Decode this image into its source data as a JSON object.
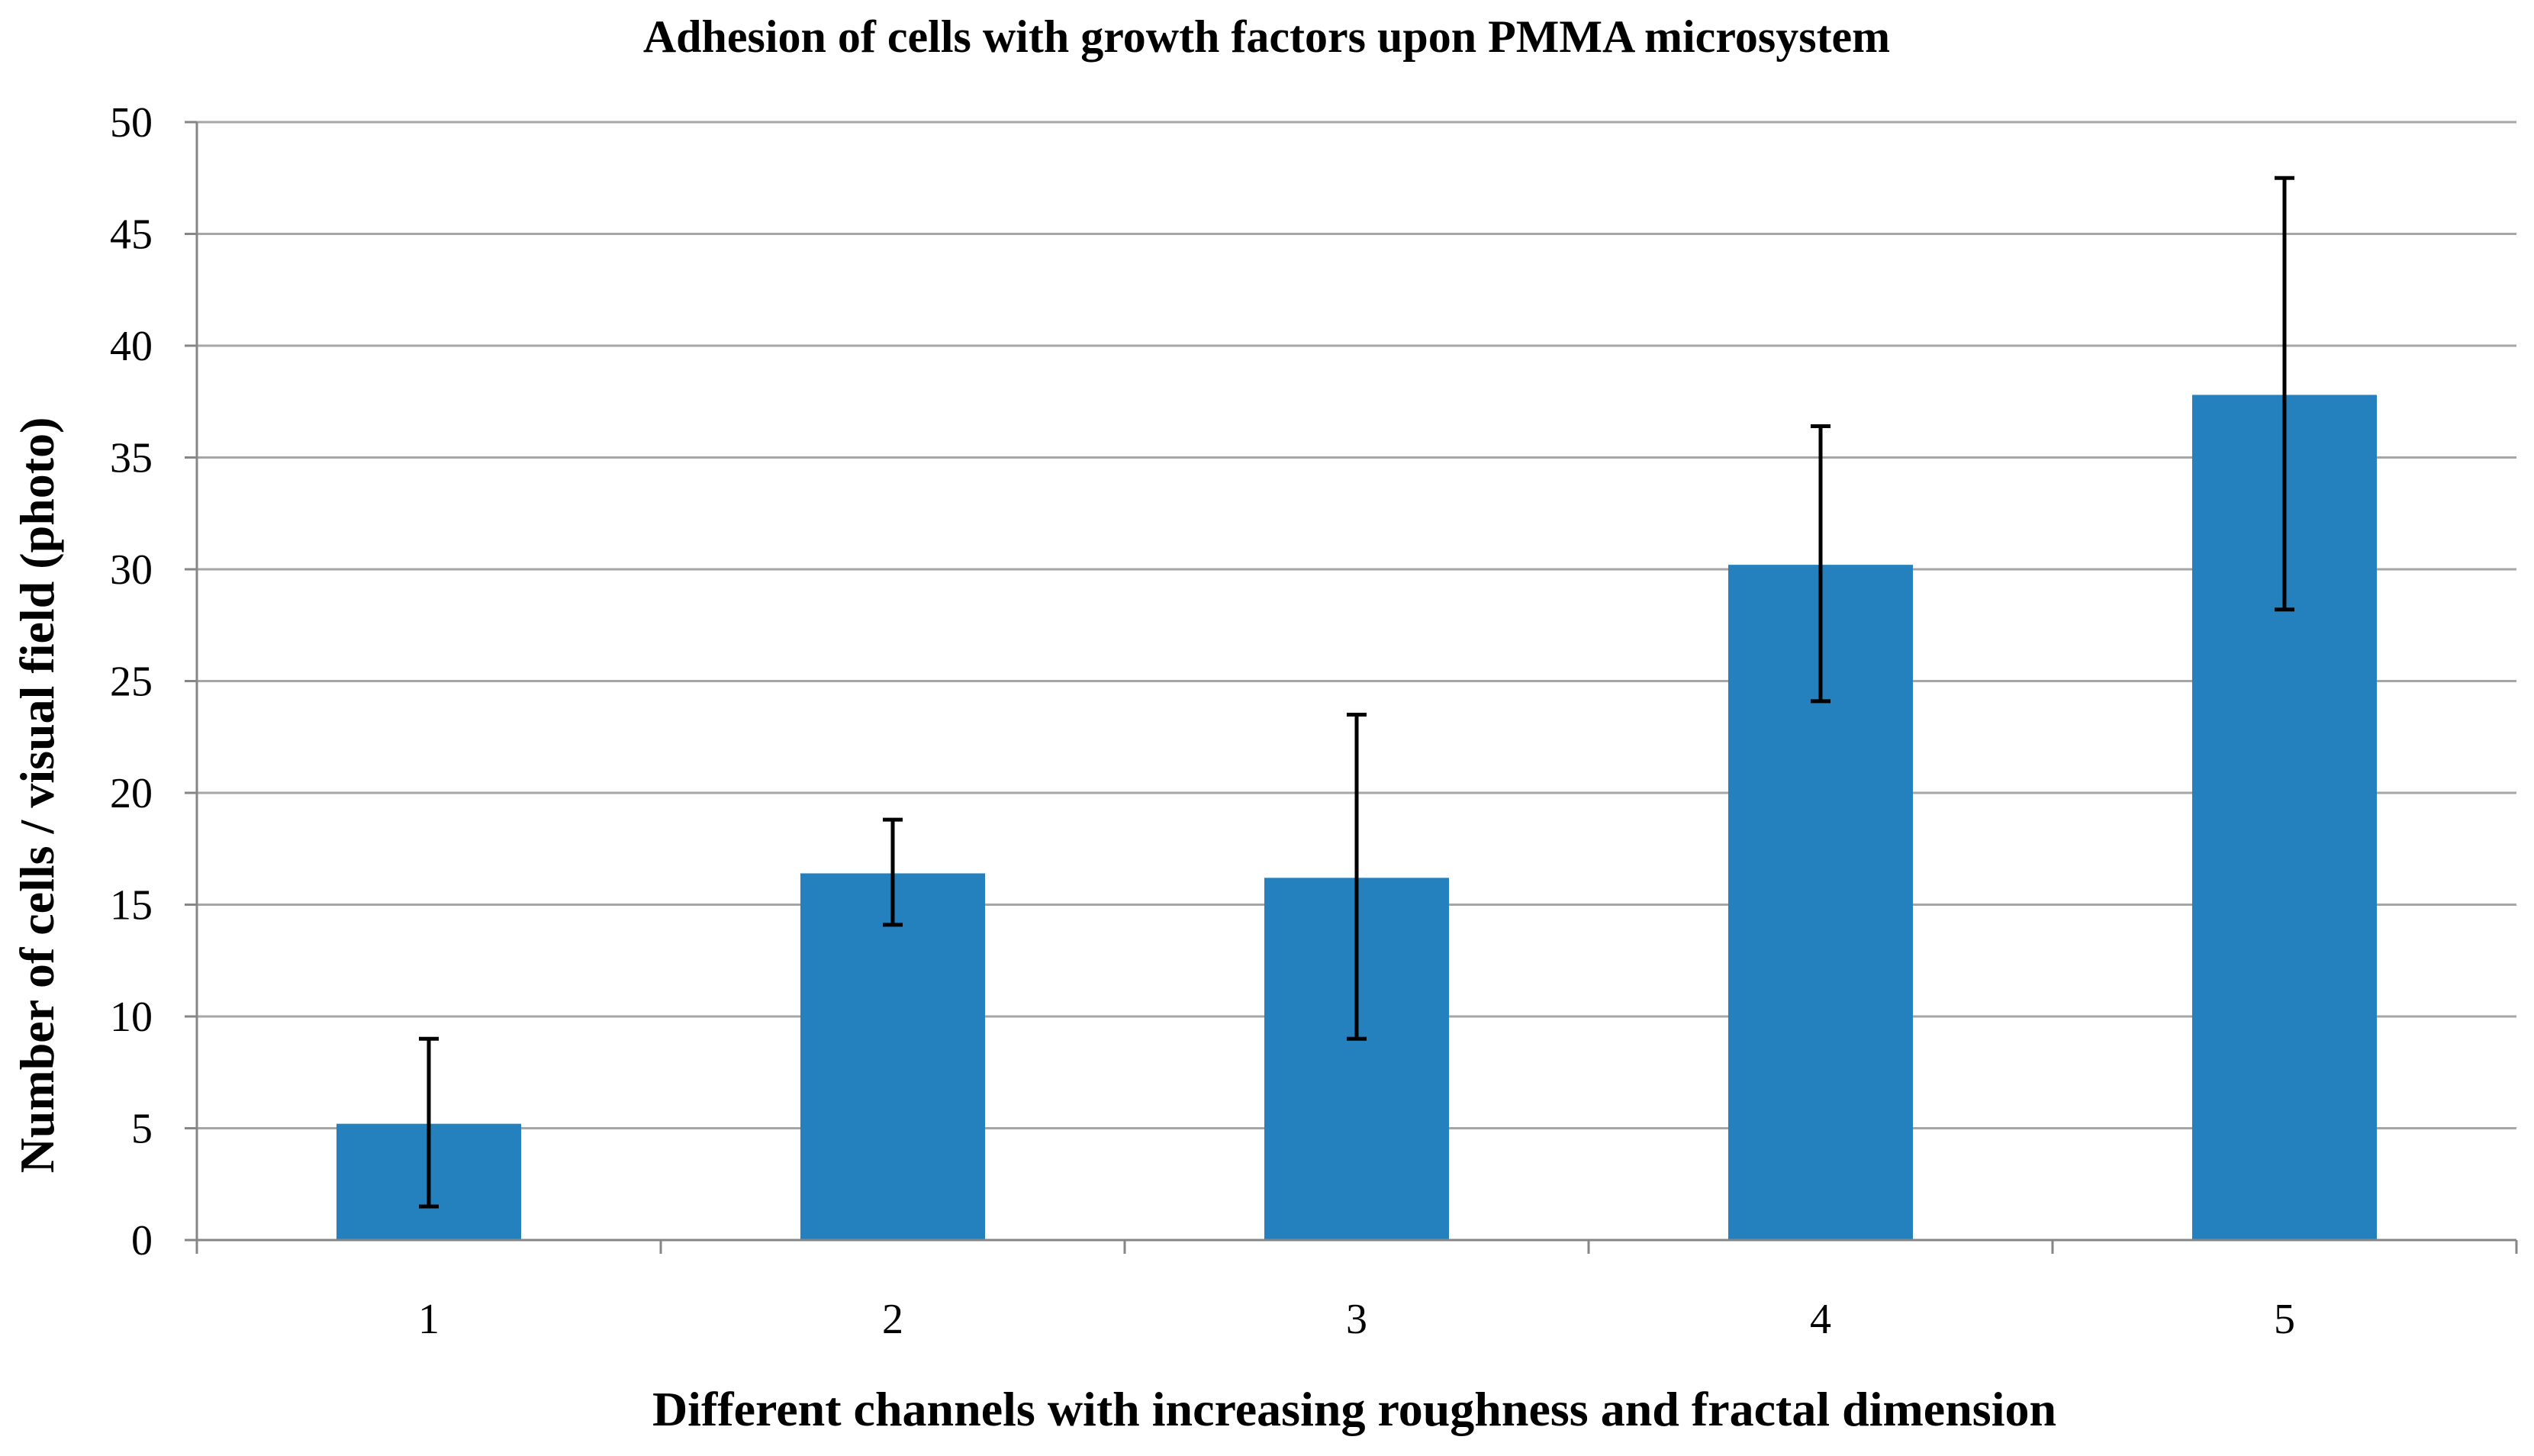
{
  "chart_data": {
    "type": "bar",
    "title": "Adhesion of cells with growth factors upon PMMA microsystem",
    "xlabel": "Different channels with increasing roughness and fractal dimension",
    "ylabel": "Number of cells / visual field (photo)",
    "categories": [
      "1",
      "2",
      "3",
      "4",
      "5"
    ],
    "series": [
      {
        "values": [
          5.2,
          16.4,
          16.2,
          30.2,
          37.8
        ],
        "error_low": [
          1.5,
          14.1,
          9.0,
          24.1,
          28.2
        ],
        "error_high": [
          9.0,
          18.8,
          23.5,
          36.4,
          47.5
        ]
      }
    ],
    "ylim": [
      0,
      50
    ],
    "yticks": [
      0,
      5,
      10,
      15,
      20,
      25,
      30,
      35,
      40,
      45,
      50
    ],
    "ytick_labels": [
      "0",
      "5",
      "10",
      "15",
      "20",
      "25",
      "30",
      "35",
      "40",
      "45",
      "50"
    ],
    "grid": "horizontal",
    "legend": "none",
    "colors": {
      "bar": "#2481BE",
      "grid": "#A6A6A6",
      "axis": "#868686",
      "error_bar": "#000000"
    }
  }
}
